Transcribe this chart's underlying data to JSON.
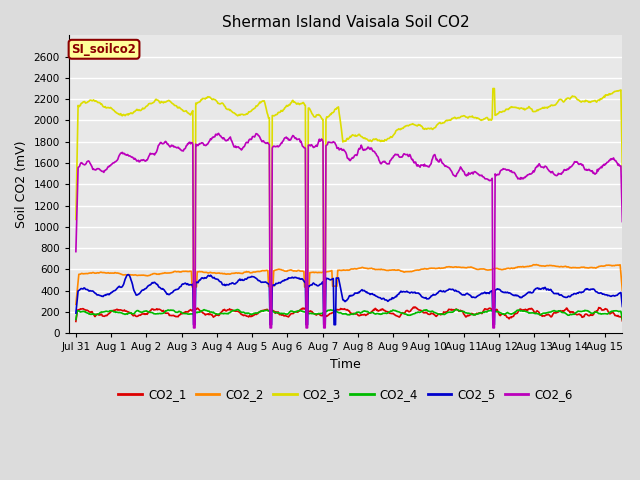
{
  "title": "Sherman Island Vaisala Soil CO2",
  "xlabel": "Time",
  "ylabel": "Soil CO2 (mV)",
  "watermark": "SI_soilco2",
  "ylim": [
    0,
    2800
  ],
  "yticks": [
    0,
    200,
    400,
    600,
    800,
    1000,
    1200,
    1400,
    1600,
    1800,
    2000,
    2200,
    2400,
    2600
  ],
  "x_tick_labels": [
    "Jul 31",
    "Aug 1",
    "Aug 2",
    "Aug 3",
    "Aug 4",
    "Aug 5",
    "Aug 6",
    "Aug 7",
    "Aug 8",
    "Aug 9",
    "Aug 10",
    "Aug 11",
    "Aug 12",
    "Aug 13",
    "Aug 14",
    "Aug 15"
  ],
  "x_tick_positions": [
    0,
    1,
    2,
    3,
    4,
    5,
    6,
    7,
    8,
    9,
    10,
    11,
    12,
    13,
    14,
    15
  ],
  "background_color": "#dcdcdc",
  "plot_bg_color": "#e8e8e8",
  "grid_color": "#ffffff",
  "line_colors": {
    "CO2_1": "#dd0000",
    "CO2_2": "#ff8800",
    "CO2_3": "#dddd00",
    "CO2_4": "#00bb00",
    "CO2_5": "#0000cc",
    "CO2_6": "#bb00bb"
  },
  "spike_days_yellow": [
    3.35,
    5.52,
    6.55,
    7.05
  ],
  "spike_days_purple": [
    3.35,
    5.52,
    6.55,
    7.05,
    11.85
  ],
  "spike_days_blue": [
    3.35,
    5.52,
    6.55,
    7.05,
    7.35,
    11.85
  ],
  "spike_days_orange": [
    3.35,
    5.52,
    6.55,
    7.35
  ],
  "figsize": [
    6.4,
    4.8
  ],
  "dpi": 100
}
